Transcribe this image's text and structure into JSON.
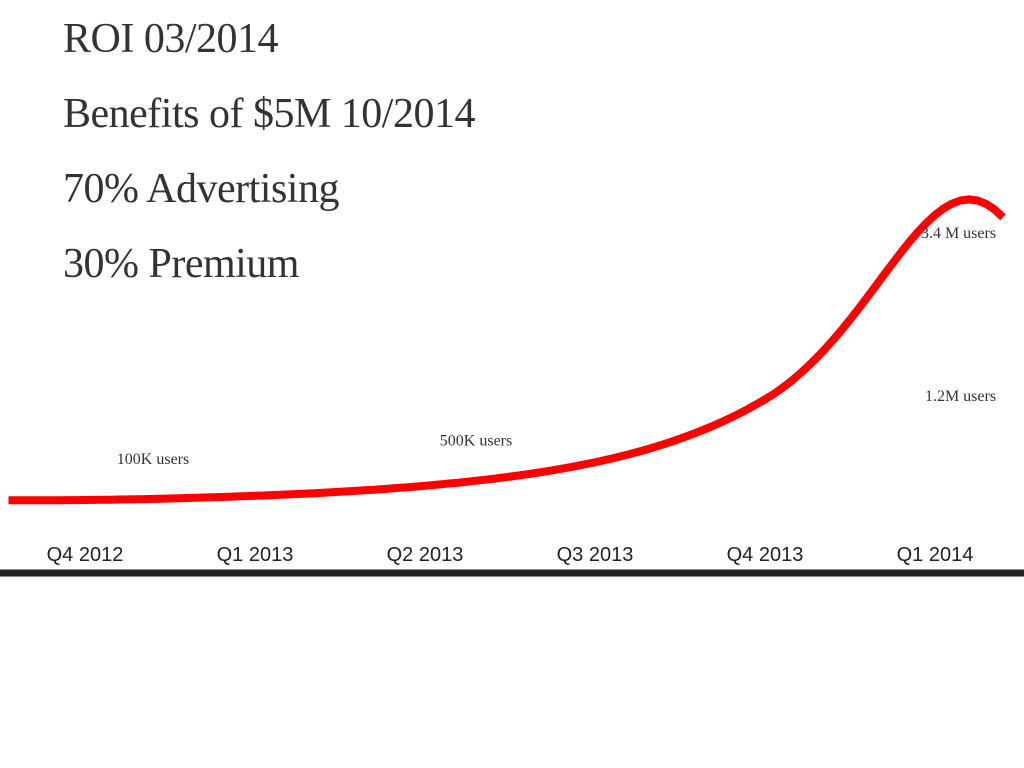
{
  "headlines": [
    "ROI 03/2014",
    "Benefits of $5M 10/2014",
    "70% Advertising",
    "30% Premium"
  ],
  "chart_data": {
    "type": "line",
    "title": "",
    "xlabel": "",
    "ylabel": "",
    "categories": [
      "Q4 2012",
      "Q1 2013",
      "Q2 2013",
      "Q3 2013",
      "Q4 2013",
      "Q1 2014"
    ],
    "x": [
      0,
      1,
      2,
      3,
      4,
      5
    ],
    "curve_y": [
      0,
      0.05,
      0.17,
      0.45,
      1.2,
      3.4
    ],
    "annotations": [
      {
        "text": "100K users",
        "x": 0.4,
        "y": 0.1
      },
      {
        "text": "500K users",
        "x": 2.3,
        "y": 0.5
      },
      {
        "text": "1.2M users",
        "x": 4.65,
        "y": 1.2
      },
      {
        "text": "3.4 M users",
        "x": 4.65,
        "y": 3.4
      }
    ],
    "colors": {
      "line": "#ff0000",
      "axis": "#222222"
    },
    "grid": false,
    "legend": "none"
  }
}
